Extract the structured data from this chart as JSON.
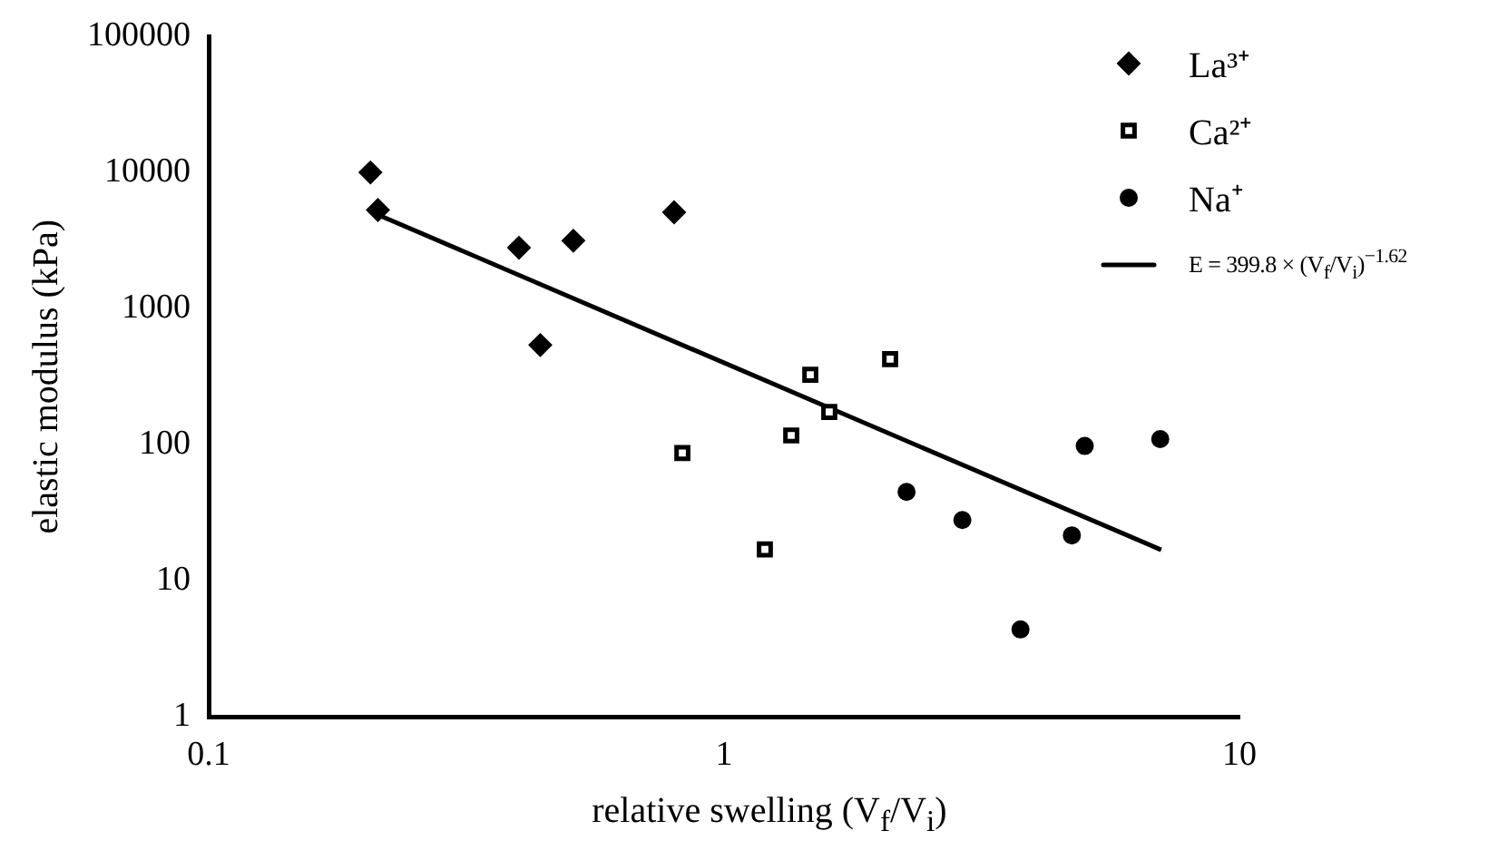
{
  "chart_data": {
    "type": "scatter",
    "xlabel": "relative swelling (V$_{f}$/V$_{i}$)",
    "ylabel": "elastic modulus (kPa)",
    "log": "xy",
    "xlim": [
      0.1,
      10
    ],
    "xticks": [
      0.1,
      1,
      10
    ],
    "ylim": [
      1,
      100000
    ],
    "yticks": [
      1,
      10,
      100,
      1000,
      10000,
      100000
    ],
    "grid": false,
    "legend": "top right",
    "series": [
      {
        "name": "La³⁺",
        "color": "#000000",
        "marker": "diamond",
        "x": [
          0.206,
          0.213,
          0.4,
          0.44,
          0.51,
          0.8
        ],
        "values": [
          10000,
          5300,
          2800,
          540,
          3150,
          5100
        ]
      },
      {
        "name": "Ca²⁺",
        "color": "#000000",
        "marker": "square",
        "x": [
          0.83,
          1.2,
          1.35,
          1.47,
          1.6,
          2.1
        ],
        "values": [
          87,
          17,
          117,
          326,
          174,
          426
        ]
      },
      {
        "name": "Na⁺",
        "color": "#000000",
        "marker": "circle",
        "x": [
          2.26,
          2.9,
          3.76,
          4.73,
          5.01,
          7.02
        ],
        "values": [
          45,
          28,
          4.4,
          21.6,
          98,
          110
        ]
      },
      {
        "name": "E = 399.8 × (V$_{f}$/V$_{i}$)$^{−1.62}$",
        "type": "line",
        "color": "#000000",
        "marker": "none",
        "line_style": "solid",
        "x": [
          0.213,
          7.05
        ],
        "values": [
          4890,
          16.9
        ]
      }
    ]
  }
}
